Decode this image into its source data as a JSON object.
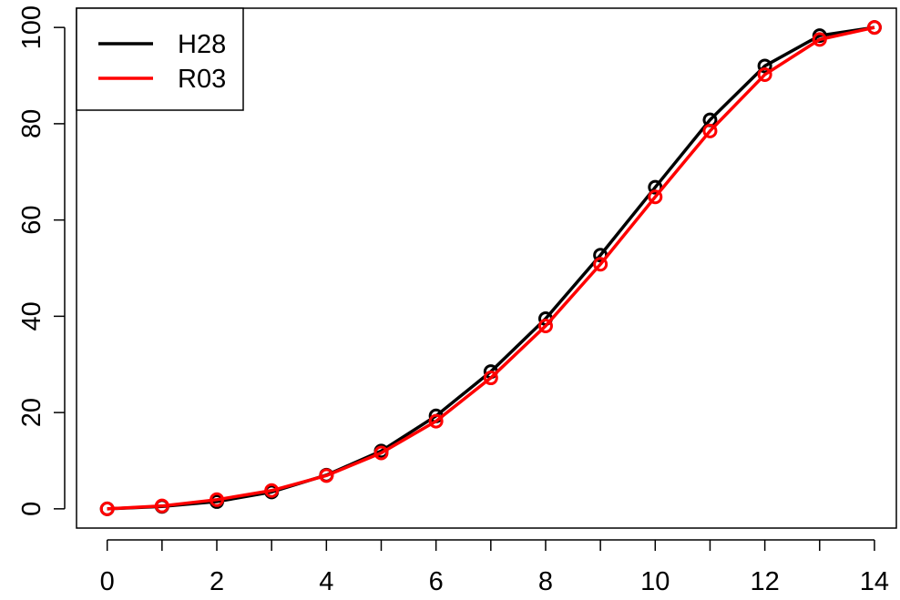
{
  "chart_data": {
    "type": "line",
    "title": "",
    "xlabel": "",
    "ylabel": "",
    "x": [
      0,
      1,
      2,
      3,
      4,
      5,
      6,
      7,
      8,
      9,
      10,
      11,
      12,
      13,
      14
    ],
    "xlim": [
      -0.56,
      14.4
    ],
    "ylim": [
      -4,
      104
    ],
    "x_ticks": [
      0,
      1,
      2,
      3,
      4,
      5,
      6,
      7,
      8,
      9,
      10,
      11,
      12,
      13,
      14
    ],
    "x_tick_labels": [
      "0",
      "",
      "2",
      "",
      "4",
      "",
      "6",
      "",
      "8",
      "",
      "10",
      "",
      "12",
      "",
      "14"
    ],
    "y_ticks": [
      0,
      20,
      40,
      60,
      80,
      100
    ],
    "y_tick_labels": [
      "0",
      "20",
      "40",
      "60",
      "80",
      "100"
    ],
    "grid": false,
    "legend_position": "top-left",
    "markers": "open-circle",
    "series": [
      {
        "name": "H28",
        "color": "#000000",
        "values": [
          0,
          0.5,
          1.5,
          3.5,
          7,
          12,
          19.3,
          28.5,
          39.5,
          52.7,
          66.8,
          80.8,
          92,
          98.3,
          100
        ]
      },
      {
        "name": "R03",
        "color": "#ff0000",
        "values": [
          0,
          0.6,
          1.9,
          3.8,
          6.9,
          11.6,
          18.2,
          27.2,
          38,
          50.8,
          64.8,
          78.5,
          90.2,
          97.5,
          100
        ]
      }
    ]
  }
}
